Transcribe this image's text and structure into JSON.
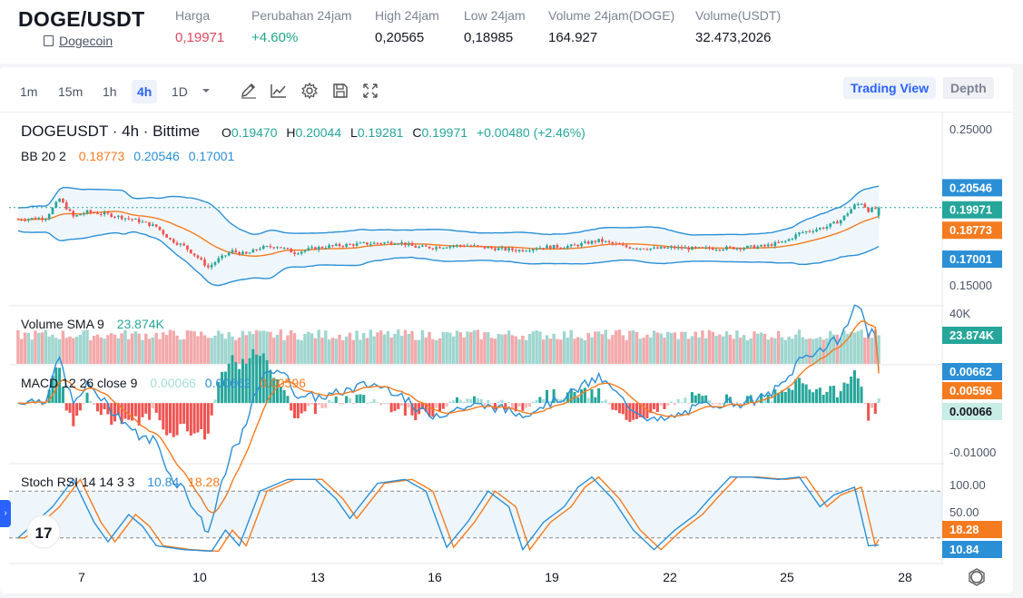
{
  "header": {
    "pair": "DOGE/USDT",
    "coin_name": "Dogecoin",
    "stats": [
      {
        "label": "Harga",
        "value": "0,19971",
        "color": "#e0475e"
      },
      {
        "label": "Perubahan 24jam",
        "value": "+4.60%",
        "color": "#1fa888"
      },
      {
        "label": "High 24jam",
        "value": "0,20565",
        "color": "#131722"
      },
      {
        "label": "Low 24jam",
        "value": "0,18985",
        "color": "#131722"
      },
      {
        "label": "Volume 24jam(DOGE)",
        "value": "164.927",
        "color": "#131722"
      },
      {
        "label": "Volume(USDT)",
        "value": "32.473,2026",
        "color": "#131722"
      }
    ]
  },
  "toolbar": {
    "timeframes": [
      "1m",
      "15m",
      "1h",
      "4h",
      "1D"
    ],
    "active_timeframe": "4h",
    "tools": [
      "pencil-icon",
      "line-chart-icon",
      "gear-icon",
      "save-icon",
      "fullscreen-icon"
    ],
    "trading_view_label": "Trading View",
    "depth_label": "Depth"
  },
  "legend": {
    "symbol": "DOGEUSDT · 4h · Bittime",
    "ohlc": [
      {
        "k": "O",
        "v": "0.19470"
      },
      {
        "k": "H",
        "v": "0.20044"
      },
      {
        "k": "L",
        "v": "0.19281"
      },
      {
        "k": "C",
        "v": "0.19971"
      }
    ],
    "change": "+0.00480 (+2.46%)",
    "bb": {
      "label": "BB 20 2",
      "mid": "0.18773",
      "upper": "0.20546",
      "lower": "0.17001"
    },
    "volume": {
      "label": "Volume SMA 9",
      "value": "23.874K"
    },
    "macd": {
      "label": "MACD 12 26 close 9",
      "hist": "0.00066",
      "macd": "0.00662",
      "signal": "0.00596"
    },
    "stoch": {
      "label": "Stoch RSI 14 14 3 3",
      "k": "10.84",
      "d": "18.28"
    }
  },
  "axis": {
    "main_ticks": [
      "0.25000",
      "0.15000"
    ],
    "main_badges": [
      {
        "v": "0.20546",
        "color": "#2b8fd6"
      },
      {
        "v": "0.19971",
        "color": "#26a69a"
      },
      {
        "v": "0.18773",
        "color": "#f47b20"
      },
      {
        "v": "0.17001",
        "color": "#2b8fd6"
      }
    ],
    "volume_tick": "40K",
    "volume_badge": "23.874K",
    "macd_badges": [
      {
        "v": "0.00662",
        "color": "#2b8fd6"
      },
      {
        "v": "0.00596",
        "color": "#f47b20"
      },
      {
        "v": "0.00066",
        "color": "#c8ece6"
      }
    ],
    "macd_tick": "-0.01000",
    "stoch_ticks": [
      "100.00",
      "50.00"
    ],
    "stoch_badges": [
      {
        "v": "18.28",
        "color": "#f47b20"
      },
      {
        "v": "10.84",
        "color": "#2b8fd6"
      }
    ],
    "x_labels": [
      "7",
      "10",
      "13",
      "16",
      "19",
      "22",
      "25",
      "28"
    ]
  },
  "colors": {
    "up": "#26a69a",
    "down": "#ef5350",
    "bb": "#2b8fd6",
    "mid": "#f47b20",
    "vol_up": "#9fd6cf",
    "vol_down": "#f3a9ab"
  }
}
